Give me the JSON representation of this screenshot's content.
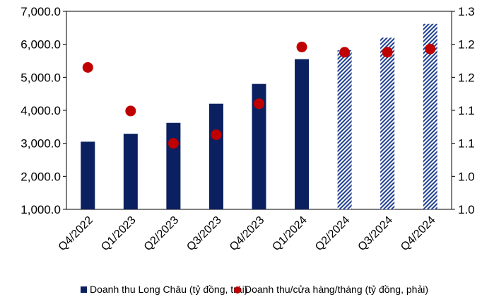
{
  "chart_data": {
    "type": "bar",
    "title": "",
    "xlabel": "",
    "categories": [
      "Q4/2022",
      "Q1/2023",
      "Q2/2023",
      "Q3/2023",
      "Q4/2023",
      "Q1/2024",
      "Q2/2024",
      "Q3/2024",
      "Q4/2024"
    ],
    "left_axis": {
      "ylim": [
        1000,
        7000
      ],
      "ticks": [
        "1,000.0",
        "2,000.0",
        "3,000.0",
        "4,000.0",
        "5,000.0",
        "6,000.0",
        "7,000.0"
      ]
    },
    "right_axis": {
      "ylim": [
        1.0,
        1.3
      ],
      "ticks": [
        "1.0",
        "1.0",
        "1.1",
        "1.1",
        "1.2",
        "1.2",
        "1.3"
      ]
    },
    "series": [
      {
        "name": "Doanh thu Long Châu (tỷ đồng, trái)",
        "kind": "bar",
        "axis": "left",
        "color": "#0b2060",
        "values": [
          3050,
          3290,
          3620,
          4200,
          4800,
          5550,
          5820,
          6200,
          6620
        ],
        "forecast": [
          false,
          false,
          false,
          false,
          false,
          false,
          true,
          true,
          true
        ]
      },
      {
        "name": "Doanh thu/cửa hàng/tháng (tỷ đồng, phải)",
        "kind": "scatter",
        "axis": "right",
        "color": "#c00000",
        "values": [
          1.215,
          1.149,
          1.1,
          1.113,
          1.16,
          1.246,
          1.238,
          1.238,
          1.243
        ]
      }
    ],
    "grid": false,
    "legend": "bottom"
  }
}
